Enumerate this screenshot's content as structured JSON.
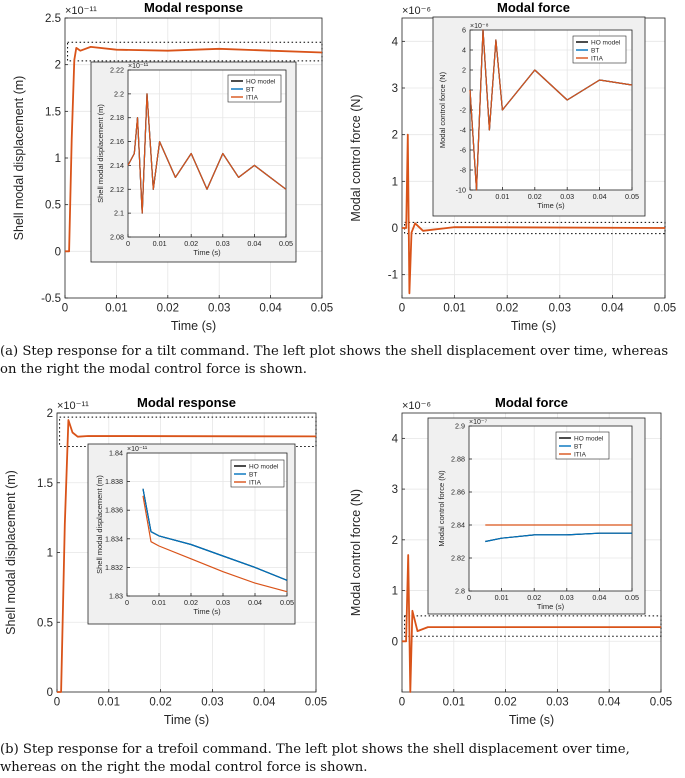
{
  "panels": [
    {
      "title": "Modal response",
      "xlabel": "Time (s)",
      "ylabel": "Shell modal displacement (m)",
      "exponent": "×10⁻¹¹",
      "xticks": [
        "0",
        "0.01",
        "0.02",
        "0.03",
        "0.04",
        "0.05"
      ],
      "yticks": [
        "-0.5",
        "0",
        "0.5",
        "1",
        "1.5",
        "2",
        "2.5"
      ]
    },
    {
      "title": "Modal force",
      "xlabel": "Time (s)",
      "ylabel": "Modal control force (N)",
      "exponent": "×10⁻⁶",
      "xticks": [
        "0",
        "0.01",
        "0.02",
        "0.03",
        "0.04",
        "0.05"
      ],
      "yticks": [
        "-1",
        "0",
        "1",
        "2",
        "3",
        "4"
      ]
    },
    {
      "title": "Modal response",
      "xlabel": "Time (s)",
      "ylabel": "Shell modal displacement (m)",
      "exponent": "×10⁻¹¹",
      "xticks": [
        "0",
        "0.01",
        "0.02",
        "0.03",
        "0.04",
        "0.05"
      ],
      "yticks": [
        "0",
        "0.5",
        "1",
        "1.5",
        "2"
      ]
    },
    {
      "title": "Modal force",
      "xlabel": "Time (s)",
      "ylabel": "Modal control force (N)",
      "exponent": "×10⁻⁶",
      "xticks": [
        "0",
        "0.01",
        "0.02",
        "0.03",
        "0.04",
        "0.05"
      ],
      "yticks": [
        "0",
        "1",
        "2",
        "3",
        "4"
      ]
    }
  ],
  "insets": [
    {
      "xlabel": "Time (s)",
      "ylabel": "Shell modal displacement (m)",
      "exponent": "×10⁻¹¹",
      "xticks": [
        "0",
        "0.01",
        "0.02",
        "0.03",
        "0.04",
        "0.05"
      ],
      "yticks": [
        "2.08",
        "2.1",
        "2.12",
        "2.14",
        "2.16",
        "2.18",
        "2.2",
        "2.22"
      ],
      "legend": [
        "HO model",
        "BT",
        "ITIA"
      ]
    },
    {
      "xlabel": "Time (s)",
      "ylabel": "Modal control force (N)",
      "exponent": "×10⁻⁸",
      "xticks": [
        "0",
        "0.01",
        "0.02",
        "0.03",
        "0.04",
        "0.05"
      ],
      "yticks": [
        "-10",
        "-8",
        "-6",
        "-4",
        "-2",
        "0",
        "2",
        "4",
        "6"
      ],
      "legend": [
        "HO model",
        "BT",
        "ITIA"
      ]
    },
    {
      "xlabel": "Time (s)",
      "ylabel": "Shell modal displacement (m)",
      "exponent": "×10⁻¹¹",
      "xticks": [
        "0",
        "0.01",
        "0.02",
        "0.03",
        "0.04",
        "0.05"
      ],
      "yticks": [
        "1.83",
        "1.832",
        "1.834",
        "1.836",
        "1.838",
        "1.84"
      ],
      "legend": [
        "HO model",
        "BT",
        "ITIA"
      ]
    },
    {
      "xlabel": "Time (s)",
      "ylabel": "Modal control force (N)",
      "exponent": "×10⁻⁷",
      "xticks": [
        "0",
        "0.01",
        "0.02",
        "0.03",
        "0.04",
        "0.05"
      ],
      "yticks": [
        "2.8",
        "2.82",
        "2.84",
        "2.86",
        "2.88",
        "2.9"
      ],
      "legend": [
        "HO model",
        "BT",
        "ITIA"
      ]
    }
  ],
  "captions": {
    "a": "(a) Step response for a tilt command. The left plot shows the shell displacement over time, whereas on the right the modal control force is shown.",
    "b": "(b) Step response for a trefoil command. The left plot shows the shell displacement over time, whereas on the right the modal control force is shown."
  },
  "colors": {
    "ho_model": "#000000",
    "bt": "#0072BD",
    "itia": "#D95319"
  },
  "chart_data": [
    {
      "type": "line",
      "title": "Modal response",
      "xlabel": "Time (s)",
      "ylabel": "Shell modal displacement (m)",
      "xlim": [
        0,
        0.05
      ],
      "ylim": [
        -0.5,
        2.5
      ],
      "y_scale_exponent": -11,
      "grid": true,
      "series": [
        {
          "name": "ITIA",
          "x": [
            0,
            0.0008,
            0.0013,
            0.0018,
            0.0022,
            0.003,
            0.005,
            0.01,
            0.02,
            0.03,
            0.04,
            0.05
          ],
          "values": [
            0,
            0,
            1.2,
            2.05,
            2.18,
            2.15,
            2.19,
            2.16,
            2.15,
            2.17,
            2.15,
            2.13
          ]
        }
      ]
    },
    {
      "type": "line",
      "xlabel": "Time (s)",
      "ylabel": "Shell modal displacement (m)",
      "xlim": [
        0,
        0.05
      ],
      "ylim": [
        2.08,
        2.22
      ],
      "y_scale_exponent": -11,
      "grid": true,
      "series": [
        {
          "name": "HO model",
          "x": [
            0,
            0.002,
            0.003,
            0.0045,
            0.006,
            0.008,
            0.01,
            0.015,
            0.02,
            0.025,
            0.03,
            0.035,
            0.04,
            0.045,
            0.05
          ],
          "values": [
            2.14,
            2.15,
            2.18,
            2.1,
            2.2,
            2.12,
            2.16,
            2.13,
            2.15,
            2.12,
            2.15,
            2.13,
            2.14,
            2.13,
            2.12
          ]
        },
        {
          "name": "BT",
          "x": [
            0,
            0.002,
            0.003,
            0.0045,
            0.006,
            0.008,
            0.01,
            0.015,
            0.02,
            0.025,
            0.03,
            0.035,
            0.04,
            0.045,
            0.05
          ],
          "values": [
            2.14,
            2.15,
            2.18,
            2.1,
            2.2,
            2.12,
            2.16,
            2.13,
            2.15,
            2.12,
            2.15,
            2.13,
            2.14,
            2.13,
            2.12
          ]
        },
        {
          "name": "ITIA",
          "x": [
            0,
            0.002,
            0.003,
            0.0045,
            0.006,
            0.008,
            0.01,
            0.015,
            0.02,
            0.025,
            0.03,
            0.035,
            0.04,
            0.045,
            0.05
          ],
          "values": [
            2.14,
            2.15,
            2.18,
            2.1,
            2.2,
            2.12,
            2.16,
            2.13,
            2.15,
            2.12,
            2.15,
            2.13,
            2.14,
            2.13,
            2.12
          ]
        }
      ],
      "legend": "top-right"
    },
    {
      "type": "line",
      "title": "Modal force",
      "xlabel": "Time (s)",
      "ylabel": "Modal control force (N)",
      "xlim": [
        0,
        0.05
      ],
      "ylim": [
        -1.5,
        4.5
      ],
      "y_scale_exponent": -6,
      "grid": true,
      "series": [
        {
          "name": "ITIA",
          "x": [
            0,
            0.0008,
            0.0011,
            0.0014,
            0.0018,
            0.0025,
            0.004,
            0.01,
            0.05
          ],
          "values": [
            0,
            0,
            2.0,
            -1.4,
            -0.1,
            0.1,
            -0.06,
            0.02,
            0.0
          ]
        }
      ]
    },
    {
      "type": "line",
      "xlabel": "Time (s)",
      "ylabel": "Modal control force (N)",
      "xlim": [
        0,
        0.05
      ],
      "ylim": [
        -10,
        6
      ],
      "y_scale_exponent": -8,
      "grid": true,
      "series": [
        {
          "name": "HO model",
          "x": [
            0,
            0.002,
            0.004,
            0.006,
            0.008,
            0.01,
            0.02,
            0.03,
            0.04,
            0.05
          ],
          "values": [
            0,
            -10,
            6,
            -4,
            5,
            -2,
            2,
            -1,
            1,
            0.5
          ]
        },
        {
          "name": "BT",
          "x": [
            0,
            0.002,
            0.004,
            0.006,
            0.008,
            0.01,
            0.02,
            0.03,
            0.04,
            0.05
          ],
          "values": [
            0,
            -10,
            6,
            -4,
            5,
            -2,
            2,
            -1,
            1,
            0.5
          ]
        },
        {
          "name": "ITIA",
          "x": [
            0,
            0.002,
            0.004,
            0.006,
            0.008,
            0.01,
            0.02,
            0.03,
            0.04,
            0.05
          ],
          "values": [
            0,
            -10,
            6,
            -4,
            5,
            -2,
            2,
            -1,
            1,
            0.5
          ]
        }
      ],
      "legend": "top-right"
    },
    {
      "type": "line",
      "title": "Modal response",
      "xlabel": "Time (s)",
      "ylabel": "Shell modal displacement (m)",
      "xlim": [
        0,
        0.05
      ],
      "ylim": [
        0,
        2
      ],
      "y_scale_exponent": -11,
      "grid": true,
      "series": [
        {
          "name": "ITIA",
          "x": [
            0,
            0.0008,
            0.0015,
            0.0022,
            0.003,
            0.004,
            0.006,
            0.05
          ],
          "values": [
            0,
            0,
            1.2,
            1.95,
            1.86,
            1.83,
            1.835,
            1.832
          ]
        }
      ]
    },
    {
      "type": "line",
      "xlabel": "Time (s)",
      "ylabel": "Shell modal displacement (m)",
      "xlim": [
        0,
        0.05
      ],
      "ylim": [
        1.83,
        1.84
      ],
      "y_scale_exponent": -11,
      "grid": true,
      "series": [
        {
          "name": "HO model",
          "x": [
            0.005,
            0.0075,
            0.01,
            0.02,
            0.03,
            0.04,
            0.05
          ],
          "values": [
            1.8375,
            1.8345,
            1.8342,
            1.8336,
            1.8328,
            1.832,
            1.8311
          ]
        },
        {
          "name": "BT",
          "x": [
            0.005,
            0.0075,
            0.01,
            0.02,
            0.03,
            0.04,
            0.05
          ],
          "values": [
            1.8375,
            1.8345,
            1.8342,
            1.8336,
            1.8328,
            1.832,
            1.8311
          ]
        },
        {
          "name": "ITIA",
          "x": [
            0.005,
            0.0075,
            0.01,
            0.02,
            0.03,
            0.04,
            0.05
          ],
          "values": [
            1.837,
            1.8338,
            1.8335,
            1.8326,
            1.8317,
            1.8309,
            1.8303
          ]
        }
      ],
      "legend": "top-right"
    },
    {
      "type": "line",
      "title": "Modal force",
      "xlabel": "Time (s)",
      "ylabel": "Modal control force (N)",
      "xlim": [
        0,
        0.05
      ],
      "ylim": [
        -1,
        4.5
      ],
      "y_scale_exponent": -6,
      "grid": true,
      "series": [
        {
          "name": "ITIA",
          "x": [
            0,
            0.0008,
            0.0012,
            0.0016,
            0.002,
            0.003,
            0.005,
            0.05
          ],
          "values": [
            0,
            0,
            1.7,
            -1.0,
            0.6,
            0.2,
            0.28,
            0.28
          ]
        }
      ]
    },
    {
      "type": "line",
      "xlabel": "Time (s)",
      "ylabel": "Modal control force (N)",
      "xlim": [
        0,
        0.05
      ],
      "ylim": [
        2.8,
        2.9
      ],
      "y_scale_exponent": -7,
      "grid": true,
      "series": [
        {
          "name": "HO model",
          "x": [
            0.005,
            0.01,
            0.02,
            0.03,
            0.04,
            0.05
          ],
          "values": [
            2.83,
            2.832,
            2.834,
            2.834,
            2.835,
            2.835
          ]
        },
        {
          "name": "BT",
          "x": [
            0.005,
            0.01,
            0.02,
            0.03,
            0.04,
            0.05
          ],
          "values": [
            2.83,
            2.832,
            2.834,
            2.834,
            2.835,
            2.835
          ]
        },
        {
          "name": "ITIA",
          "x": [
            0.005,
            0.01,
            0.02,
            0.03,
            0.04,
            0.05
          ],
          "values": [
            2.84,
            2.84,
            2.84,
            2.84,
            2.84,
            2.84
          ]
        }
      ],
      "legend": "top-right"
    }
  ]
}
